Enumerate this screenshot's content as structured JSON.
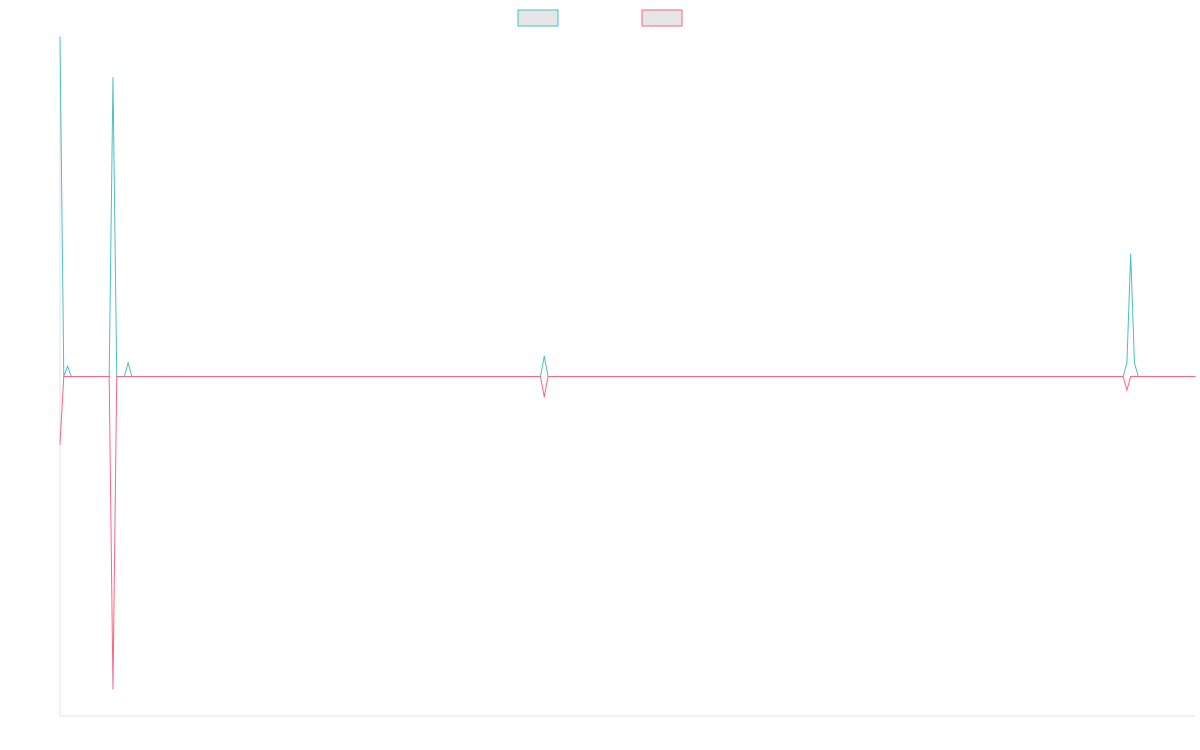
{
  "chart_data": {
    "type": "line",
    "title": "",
    "xlabel": "",
    "ylabel": "",
    "ylim": [
      -100,
      100
    ],
    "grid": false,
    "legend_position": "top",
    "series": [
      {
        "name": "",
        "color": "#4bc0c0",
        "fill": "#e6e6e6",
        "points": [
          [
            0,
            100
          ],
          [
            1,
            0
          ],
          [
            2,
            3
          ],
          [
            3,
            0
          ],
          [
            4,
            0
          ],
          [
            5,
            0
          ],
          [
            6,
            0
          ],
          [
            7,
            0
          ],
          [
            8,
            0
          ],
          [
            9,
            0
          ],
          [
            10,
            0
          ],
          [
            11,
            0
          ],
          [
            12,
            0
          ],
          [
            13,
            0
          ],
          [
            14,
            88
          ],
          [
            15,
            0
          ],
          [
            16,
            0
          ],
          [
            17,
            0
          ],
          [
            18,
            4
          ],
          [
            19,
            0
          ],
          [
            20,
            0
          ],
          [
            21,
            0
          ],
          [
            22,
            0
          ],
          [
            23,
            0
          ],
          [
            24,
            0
          ],
          [
            25,
            0
          ],
          [
            26,
            0
          ],
          [
            27,
            0
          ],
          [
            28,
            0
          ],
          [
            29,
            0
          ],
          [
            30,
            0
          ],
          [
            31,
            0
          ],
          [
            32,
            0
          ],
          [
            127,
            0
          ],
          [
            128,
            6
          ],
          [
            129,
            0
          ],
          [
            130,
            0
          ],
          [
            281,
            0
          ],
          [
            282,
            4
          ],
          [
            283,
            36
          ],
          [
            284,
            4
          ],
          [
            285,
            0
          ],
          [
            300,
            0
          ]
        ]
      },
      {
        "name": "",
        "color": "#ff6384",
        "fill": "#e6e6e6",
        "points": [
          [
            0,
            -20
          ],
          [
            1,
            0
          ],
          [
            2,
            0
          ],
          [
            3,
            0
          ],
          [
            13,
            0
          ],
          [
            14,
            -92
          ],
          [
            15,
            0
          ],
          [
            16,
            0
          ],
          [
            30,
            0
          ],
          [
            31,
            0
          ],
          [
            32,
            0
          ],
          [
            127,
            0
          ],
          [
            128,
            -6
          ],
          [
            129,
            0
          ],
          [
            130,
            0
          ],
          [
            281,
            0
          ],
          [
            282,
            -4
          ],
          [
            283,
            0
          ],
          [
            284,
            0
          ],
          [
            300,
            0
          ]
        ]
      }
    ]
  }
}
